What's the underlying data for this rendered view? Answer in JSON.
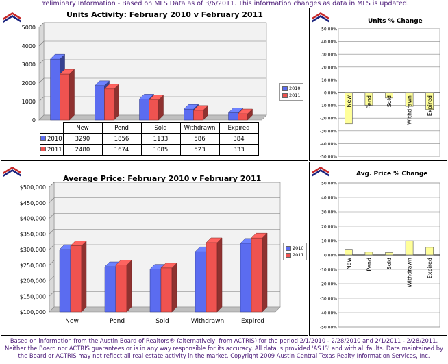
{
  "header": {
    "prelim_text": "Preliminary Information - Based on MLS Data as of 3/6/2011.  This information changes as data in MLS is updated."
  },
  "colors": {
    "series_2010": "#5b6cf0",
    "series_2011": "#ef5350",
    "pct_bar": "#ffff99",
    "text_purple": "#4b1a78"
  },
  "icons": [
    "logo-icon"
  ],
  "units_chart": {
    "chart_data": {
      "type": "bar",
      "title": "Units Activity:  February  2010 v February  2011",
      "categories": [
        "New",
        "Pend",
        "Sold",
        "Withdrawn",
        "Expired"
      ],
      "series": [
        {
          "name": "2010",
          "values": [
            3290,
            1856,
            1133,
            586,
            384
          ]
        },
        {
          "name": "2011",
          "values": [
            2480,
            1674,
            1085,
            523,
            333
          ]
        }
      ],
      "ylim": [
        0,
        5000
      ],
      "yticks": [
        "0",
        "1000",
        "2000",
        "3000",
        "4000",
        "5000"
      ],
      "grid": true,
      "legend": "right"
    },
    "legend_labels": [
      "2010",
      "2011"
    ],
    "table": {
      "headers": [
        "New",
        "Pend",
        "Sold",
        "Withdrawn",
        "Expired"
      ],
      "rows": [
        {
          "label": "2010",
          "values": [
            "3290",
            "1856",
            "1133",
            "586",
            "384"
          ]
        },
        {
          "label": "2011",
          "values": [
            "2480",
            "1674",
            "1085",
            "523",
            "333"
          ]
        }
      ]
    }
  },
  "units_pct_chart": {
    "chart_data": {
      "type": "bar",
      "title": "Units % Change",
      "categories": [
        "New",
        "Pend",
        "Sold",
        "Withdrawn",
        "Expired"
      ],
      "values": [
        -24.6,
        -9.8,
        -4.2,
        -10.8,
        -13.3
      ],
      "ylim": [
        -50,
        50
      ],
      "yticks": [
        "-50.00%",
        "-40.00%",
        "-30.00%",
        "-20.00%",
        "-10.00%",
        "0.00%",
        "10.00%",
        "20.00%",
        "30.00%",
        "40.00%",
        "50.00%"
      ],
      "grid": true
    }
  },
  "price_chart": {
    "chart_data": {
      "type": "bar",
      "title": "Average Price:  February 2010 v February 2011",
      "categories": [
        "New",
        "Pend",
        "Sold",
        "Withdrawn",
        "Expired"
      ],
      "series": [
        {
          "name": "2010",
          "values": [
            300000,
            245000,
            237000,
            293000,
            320000
          ]
        },
        {
          "name": "2011",
          "values": [
            312000,
            250000,
            241000,
            322000,
            337000
          ]
        }
      ],
      "ylim": [
        100000,
        500000
      ],
      "yticks": [
        "$100,000",
        "$150,000",
        "$200,000",
        "$250,000",
        "$300,000",
        "$350,000",
        "$400,000",
        "$450,000",
        "$500,000"
      ],
      "grid": true,
      "legend": "right"
    },
    "legend_labels": [
      "2010",
      "2011"
    ]
  },
  "price_pct_chart": {
    "chart_data": {
      "type": "bar",
      "title": "Avg. Price % Change",
      "categories": [
        "New",
        "Pend",
        "Sold",
        "Withdrawn",
        "Expired"
      ],
      "values": [
        4.0,
        2.0,
        1.7,
        9.9,
        5.3
      ],
      "ylim": [
        -50,
        50
      ],
      "yticks": [
        "-50.00%",
        "-40.00%",
        "-30.00%",
        "-20.00%",
        "-10.00%",
        "0.00%",
        "10.00%",
        "20.00%",
        "30.00%",
        "40.00%",
        "50.00%"
      ],
      "grid": true
    }
  },
  "footer": {
    "text": "Based on information from the Austin Board of Realtors® (alternatively, from ACTRIS) for the period 2/1/2010 - 2/28/2010 and 2/1/2011 - 2/28/2011.  Neither the Board nor ACTRIS guarantees or is in any way responsible for its accuracy.  All data is provided 'AS IS' and with all faults.  Data maintained by the Board or ACTRIS may not reflect all real estate activity in the market.  Copyright 2009 Austin Central Texas Realty Information Services, Inc."
  }
}
